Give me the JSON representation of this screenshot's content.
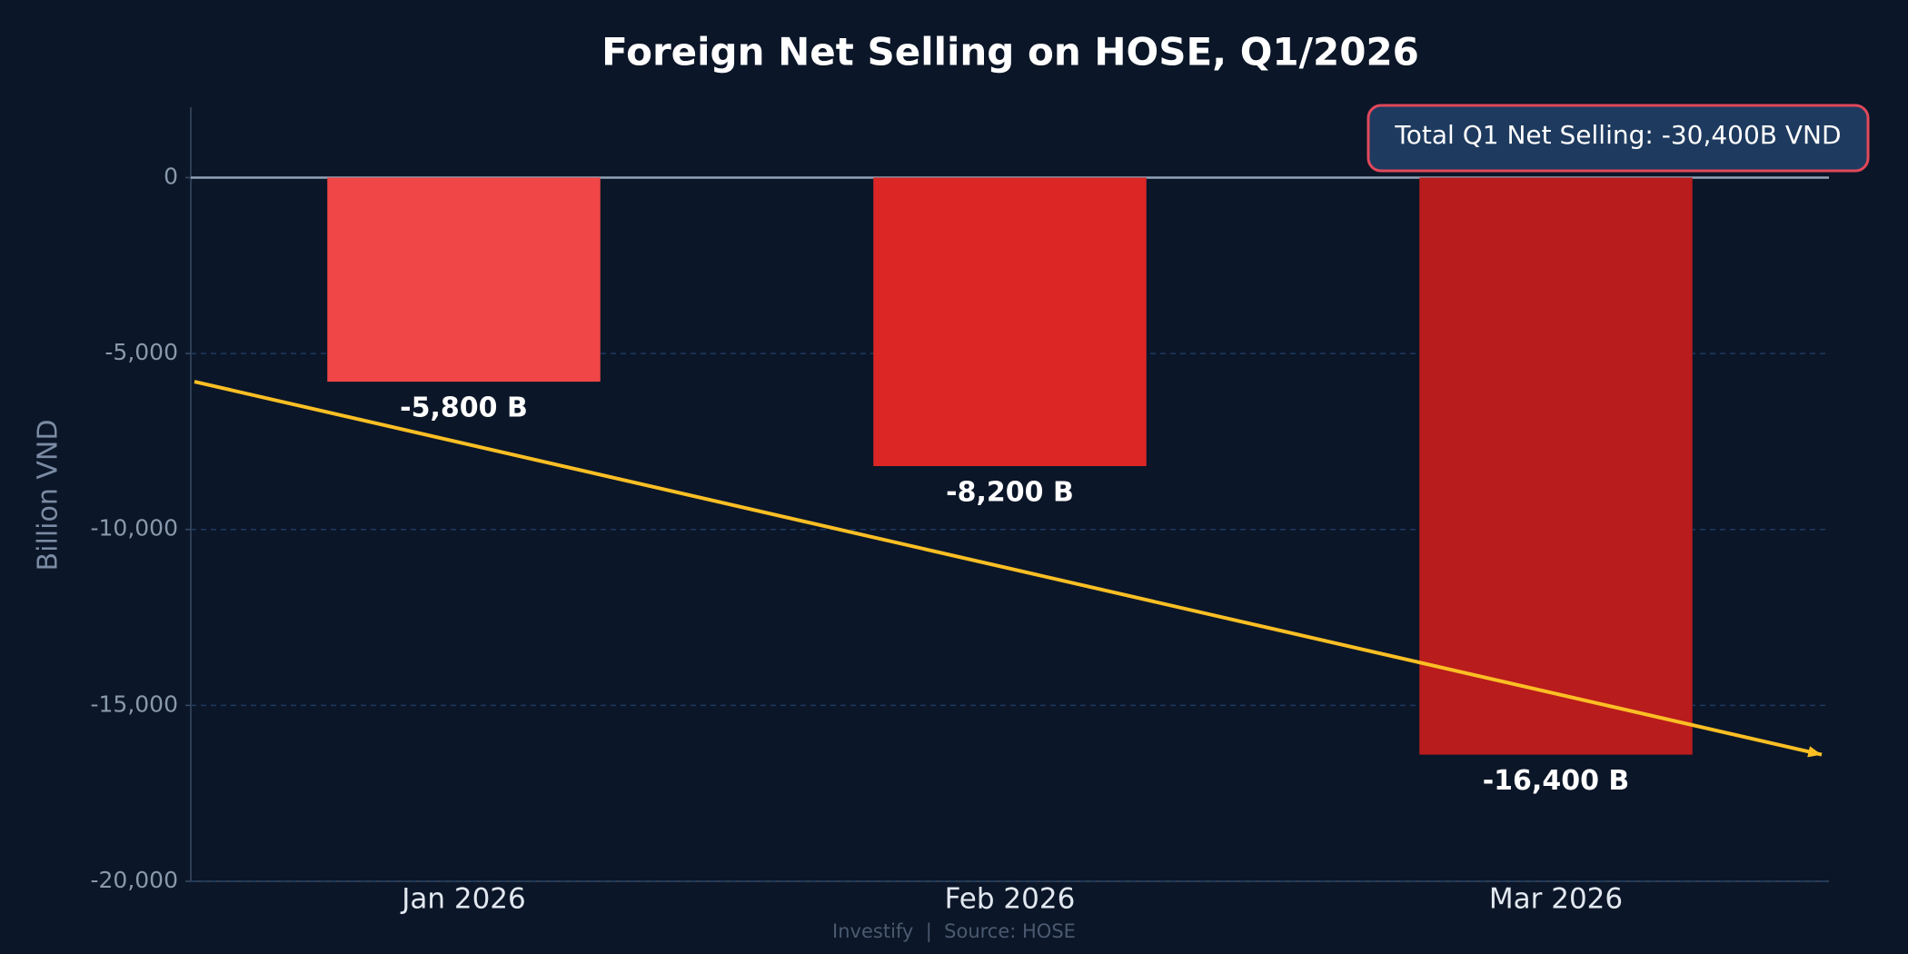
{
  "chart_data": {
    "type": "bar",
    "title": "Foreign Net Selling on HOSE, Q1/2026",
    "y_label": "Billion VND",
    "categories": [
      "Jan 2026",
      "Feb 2026",
      "Mar 2026"
    ],
    "values": [
      -5800,
      -8200,
      -16400
    ],
    "value_labels": [
      "-5,800 B",
      "-8,200 B",
      "-16,400 B"
    ],
    "colors": [
      "#f04647",
      "#dc2626",
      "#b91c1c"
    ],
    "ylim": [
      -20000,
      2000
    ],
    "yticks": [
      {
        "value": -20000,
        "label": "-20,000"
      },
      {
        "value": -15000,
        "label": "-15,000"
      },
      {
        "value": -10000,
        "label": "-10,000"
      },
      {
        "value": -5000,
        "label": "-5,000"
      },
      0
    ],
    "grid": true,
    "trend": {
      "start": -5800,
      "end": -16400,
      "color": "#fbbf24"
    },
    "annotation": "Total Q1 Net Selling: -30,400B VND",
    "footer": "Investify  |  Source: HOSE"
  }
}
